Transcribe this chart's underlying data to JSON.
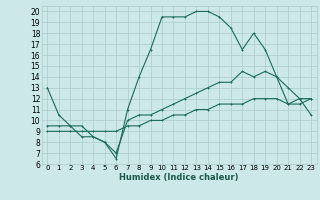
{
  "xlabel": "Humidex (Indice chaleur)",
  "bg_color": "#cce8e8",
  "grid_color": "#aacccc",
  "line_color": "#1a6b5a",
  "xlim": [
    -0.5,
    23.5
  ],
  "ylim": [
    6,
    20.5
  ],
  "xticks": [
    0,
    1,
    2,
    3,
    4,
    5,
    6,
    7,
    8,
    9,
    10,
    11,
    12,
    13,
    14,
    15,
    16,
    17,
    18,
    19,
    20,
    21,
    22,
    23
  ],
  "yticks": [
    6,
    7,
    8,
    9,
    10,
    11,
    12,
    13,
    14,
    15,
    16,
    17,
    18,
    19,
    20
  ],
  "series1_x": [
    0,
    1,
    2,
    3,
    4,
    5,
    6,
    7,
    8,
    9,
    10,
    11,
    12,
    13,
    14,
    15,
    16,
    17,
    18,
    19,
    20,
    21,
    22,
    23
  ],
  "series1_y": [
    13.0,
    10.5,
    9.5,
    8.5,
    8.5,
    8.0,
    6.5,
    11.0,
    14.0,
    16.5,
    19.5,
    19.5,
    19.5,
    20.0,
    20.0,
    19.5,
    18.5,
    16.5,
    18.0,
    16.5,
    14.0,
    13.0,
    12.0,
    12.0
  ],
  "series2_x": [
    0,
    1,
    2,
    3,
    4,
    5,
    6,
    7,
    8,
    9,
    10,
    11,
    12,
    13,
    14,
    15,
    16,
    17,
    18,
    19,
    20,
    21,
    22,
    23
  ],
  "series2_y": [
    9.5,
    9.5,
    9.5,
    9.5,
    8.5,
    8.0,
    7.0,
    10.0,
    10.5,
    10.5,
    11.0,
    11.5,
    12.0,
    12.5,
    13.0,
    13.5,
    13.5,
    14.5,
    14.0,
    14.5,
    14.0,
    11.5,
    12.0,
    10.5
  ],
  "series3_x": [
    0,
    1,
    2,
    3,
    4,
    5,
    6,
    7,
    8,
    9,
    10,
    11,
    12,
    13,
    14,
    15,
    16,
    17,
    18,
    19,
    20,
    21,
    22,
    23
  ],
  "series3_y": [
    9.0,
    9.0,
    9.0,
    9.0,
    9.0,
    9.0,
    9.0,
    9.5,
    9.5,
    10.0,
    10.0,
    10.5,
    10.5,
    11.0,
    11.0,
    11.5,
    11.5,
    11.5,
    12.0,
    12.0,
    12.0,
    11.5,
    11.5,
    12.0
  ]
}
